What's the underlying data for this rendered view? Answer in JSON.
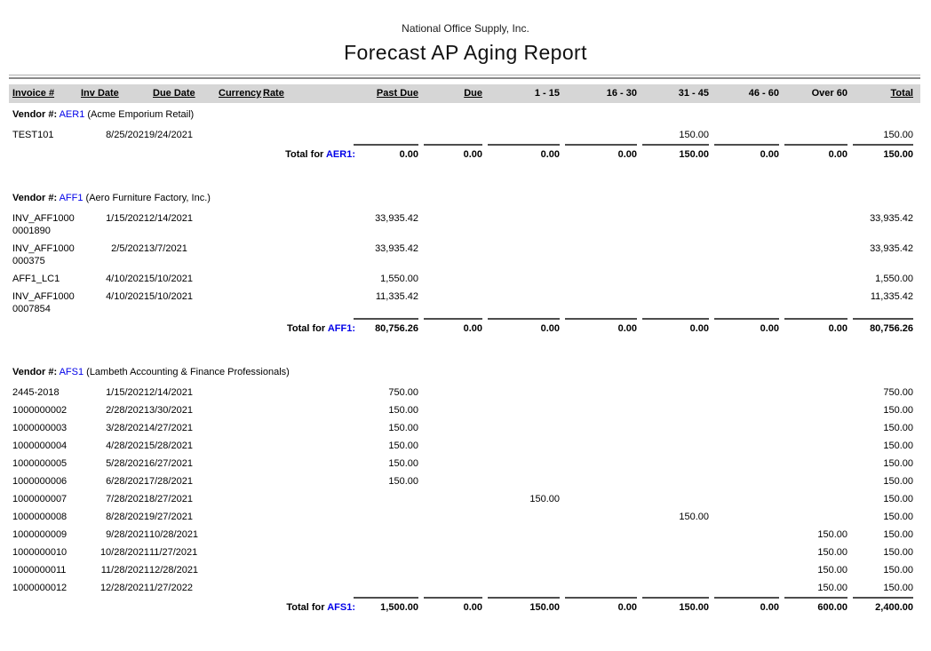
{
  "page": {
    "company": "National Office Supply, Inc.",
    "title": "Forecast AP Aging Report"
  },
  "labels": {
    "vendor_prefix": "Vendor #:",
    "total_for": "Total for",
    "colon": ":"
  },
  "colors": {
    "link_blue": "#0000e8",
    "header_bar": "#d6d6d6",
    "total_rule": "#4d4d4d"
  },
  "columns": [
    {
      "key": "invoice",
      "label": "Invoice #"
    },
    {
      "key": "inv_date",
      "label": "Inv Date"
    },
    {
      "key": "due_date",
      "label": "Due Date"
    },
    {
      "key": "currency",
      "label": "Currency"
    },
    {
      "key": "rate",
      "label": "Rate"
    },
    {
      "key": "past_due",
      "label": "Past Due"
    },
    {
      "key": "due",
      "label": "Due"
    },
    {
      "key": "b1_15",
      "label": "1 - 15"
    },
    {
      "key": "b16_30",
      "label": "16 - 30"
    },
    {
      "key": "b31_45",
      "label": "31 - 45"
    },
    {
      "key": "b46_60",
      "label": "46 - 60"
    },
    {
      "key": "over_60",
      "label": "Over 60"
    },
    {
      "key": "total",
      "label": "Total"
    }
  ],
  "vendors": [
    {
      "code": "AER1",
      "name": "(Acme Emporium Retail)",
      "rows": [
        {
          "invoice": "TEST101",
          "inv_date": "8/25/2021",
          "due_date": "9/24/2021",
          "b31_45": "150.00",
          "total": "150.00"
        }
      ],
      "totals": {
        "past_due": "0.00",
        "due": "0.00",
        "b1_15": "0.00",
        "b16_30": "0.00",
        "b31_45": "150.00",
        "b46_60": "0.00",
        "over_60": "0.00",
        "total": "150.00"
      }
    },
    {
      "code": "AFF1",
      "name": "(Aero Furniture Factory, Inc.)",
      "rows": [
        {
          "invoice": "INV_AFF1000\n0001890",
          "inv_date": "1/15/2021",
          "due_date": "2/14/2021",
          "past_due": "33,935.42",
          "total": "33,935.42"
        },
        {
          "invoice": "INV_AFF1000\n000375",
          "inv_date": "2/5/2021",
          "due_date": "3/7/2021",
          "past_due": "33,935.42",
          "total": "33,935.42"
        },
        {
          "invoice": "AFF1_LC1",
          "inv_date": "4/10/2021",
          "due_date": "5/10/2021",
          "past_due": "1,550.00",
          "total": "1,550.00"
        },
        {
          "invoice": "INV_AFF1000\n0007854",
          "inv_date": "4/10/2021",
          "due_date": "5/10/2021",
          "past_due": "11,335.42",
          "total": "11,335.42"
        }
      ],
      "totals": {
        "past_due": "80,756.26",
        "due": "0.00",
        "b1_15": "0.00",
        "b16_30": "0.00",
        "b31_45": "0.00",
        "b46_60": "0.00",
        "over_60": "0.00",
        "total": "80,756.26"
      }
    },
    {
      "code": "AFS1",
      "name": "(Lambeth Accounting & Finance Professionals)",
      "rows": [
        {
          "invoice": "2445-2018",
          "inv_date": "1/15/2021",
          "due_date": "2/14/2021",
          "past_due": "750.00",
          "total": "750.00"
        },
        {
          "invoice": "1000000002",
          "inv_date": "2/28/2021",
          "due_date": "3/30/2021",
          "past_due": "150.00",
          "total": "150.00"
        },
        {
          "invoice": "1000000003",
          "inv_date": "3/28/2021",
          "due_date": "4/27/2021",
          "past_due": "150.00",
          "total": "150.00"
        },
        {
          "invoice": "1000000004",
          "inv_date": "4/28/2021",
          "due_date": "5/28/2021",
          "past_due": "150.00",
          "total": "150.00"
        },
        {
          "invoice": "1000000005",
          "inv_date": "5/28/2021",
          "due_date": "6/27/2021",
          "past_due": "150.00",
          "total": "150.00"
        },
        {
          "invoice": "1000000006",
          "inv_date": "6/28/2021",
          "due_date": "7/28/2021",
          "past_due": "150.00",
          "total": "150.00"
        },
        {
          "invoice": "1000000007",
          "inv_date": "7/28/2021",
          "due_date": "8/27/2021",
          "b1_15": "150.00",
          "total": "150.00"
        },
        {
          "invoice": "1000000008",
          "inv_date": "8/28/2021",
          "due_date": "9/27/2021",
          "b31_45": "150.00",
          "total": "150.00"
        },
        {
          "invoice": "1000000009",
          "inv_date": "9/28/2021",
          "due_date": "10/28/2021",
          "over_60": "150.00",
          "total": "150.00"
        },
        {
          "invoice": "1000000010",
          "inv_date": "10/28/2021",
          "due_date": "11/27/2021",
          "over_60": "150.00",
          "total": "150.00"
        },
        {
          "invoice": "1000000011",
          "inv_date": "11/28/2021",
          "due_date": "12/28/2021",
          "over_60": "150.00",
          "total": "150.00"
        },
        {
          "invoice": "1000000012",
          "inv_date": "12/28/2021",
          "due_date": "1/27/2022",
          "over_60": "150.00",
          "total": "150.00"
        }
      ],
      "totals": {
        "past_due": "1,500.00",
        "due": "0.00",
        "b1_15": "150.00",
        "b16_30": "0.00",
        "b31_45": "150.00",
        "b46_60": "0.00",
        "over_60": "600.00",
        "total": "2,400.00"
      }
    }
  ]
}
